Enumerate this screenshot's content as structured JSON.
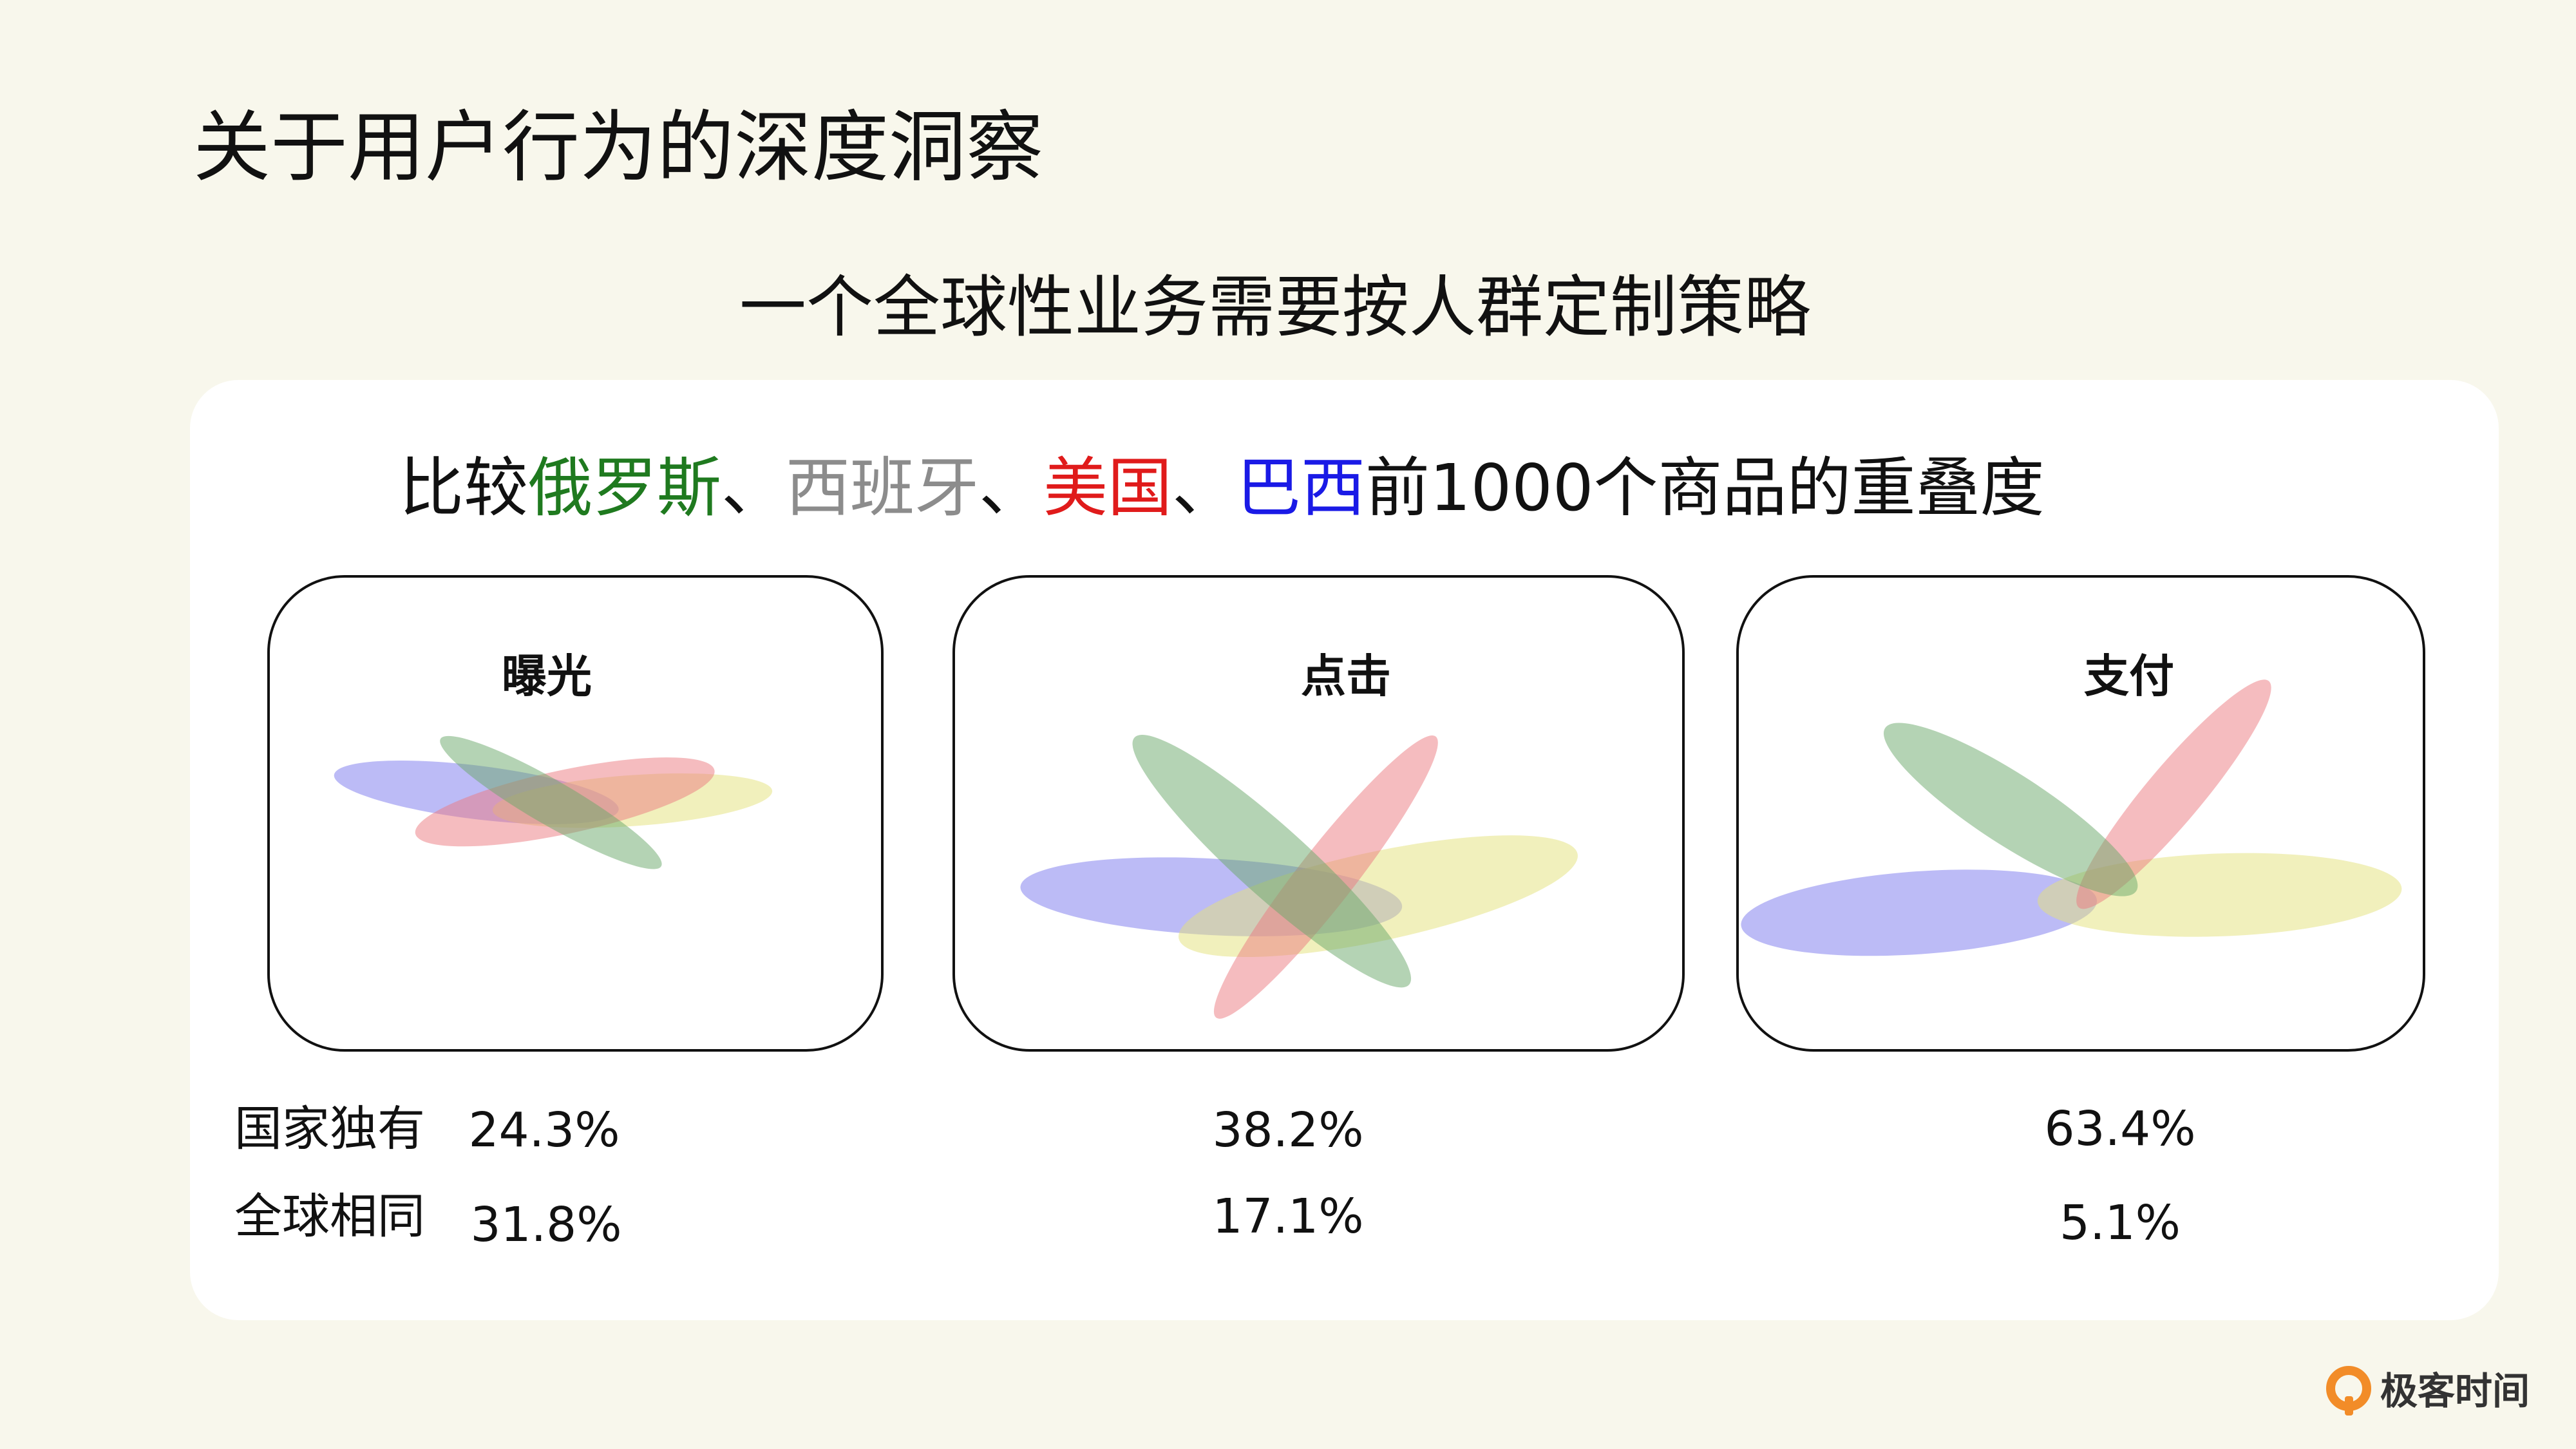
{
  "page": {
    "title": "关于用户行为的深度洞察",
    "subtitle": "一个全球性业务需要按人群定制策略"
  },
  "comparison": {
    "prefix": "比较",
    "countries": [
      {
        "name": "俄罗斯",
        "color": "#1f7a1f"
      },
      {
        "name": "西班牙",
        "color": "#8c8c8c"
      },
      {
        "name": "美国",
        "color": "#e01b1b"
      },
      {
        "name": "巴西",
        "color": "#1a1ae6"
      }
    ],
    "separator": "、",
    "suffix": "前1000个商品的重叠度"
  },
  "venn_colors": {
    "russia": "#6aa86a",
    "spain": "#e3e27a",
    "usa": "#eb7a80",
    "brazil": "#7a78ee"
  },
  "panels": [
    {
      "title": "曝光",
      "unique": "24.3%",
      "common": "31.8%"
    },
    {
      "title": "点击",
      "unique": "38.2%",
      "common": "17.1%"
    },
    {
      "title": "支付",
      "unique": "63.4%",
      "common": "5.1%"
    }
  ],
  "row_labels": {
    "unique": "国家独有",
    "common": "全球相同"
  },
  "brand": {
    "name": "极客时间",
    "color": "#f28c28"
  }
}
